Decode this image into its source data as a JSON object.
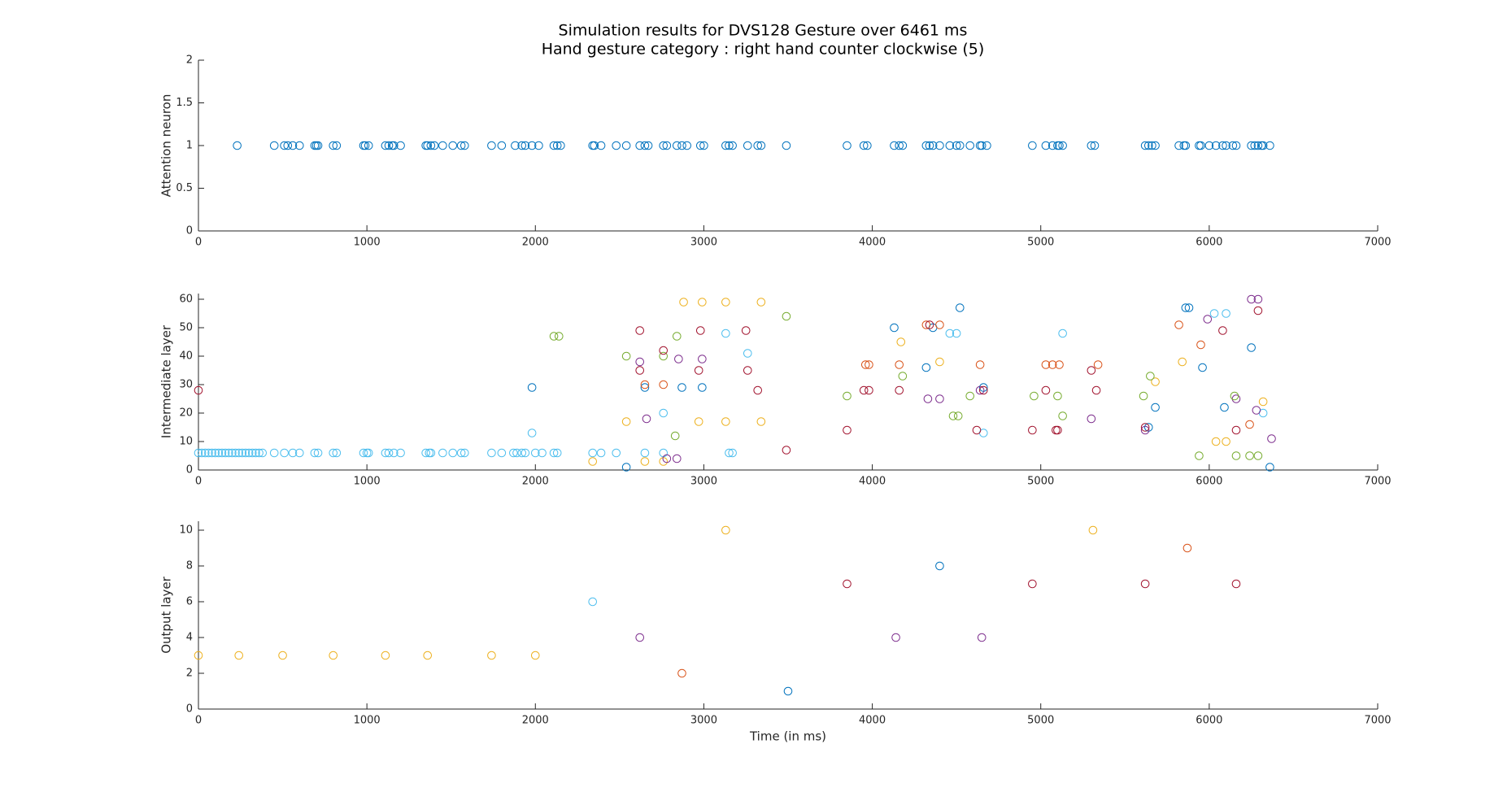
{
  "chart_data": [
    {
      "type": "scatter",
      "title": "Simulation results for DVS128 Gesture over 6461 ms",
      "subtitle": "Hand gesture category : right hand counter clockwise (5)",
      "ylabel": "Attention neuron",
      "xlim": [
        0,
        7000
      ],
      "xticks": [
        0,
        1000,
        2000,
        3000,
        4000,
        5000,
        6000,
        7000
      ],
      "ylim": [
        0,
        2
      ],
      "yticks": [
        0,
        0.5,
        1,
        1.5,
        2
      ],
      "series": [
        {
          "color": "#0072BD",
          "x": [
            230,
            450,
            510,
            530,
            560,
            600,
            690,
            700,
            710,
            800,
            820,
            980,
            990,
            1010,
            1110,
            1130,
            1150,
            1160,
            1200,
            1350,
            1360,
            1380,
            1400,
            1450,
            1510,
            1560,
            1580,
            1740,
            1800,
            1880,
            1920,
            1940,
            1980,
            2020,
            2110,
            2130,
            2150,
            2340,
            2350,
            2390,
            2480,
            2540,
            2620,
            2650,
            2670,
            2760,
            2780,
            2840,
            2870,
            2900,
            2980,
            3000,
            3130,
            3150,
            3170,
            3260,
            3320,
            3340,
            3490,
            3850,
            3950,
            3970,
            4130,
            4160,
            4180,
            4320,
            4340,
            4360,
            4400,
            4460,
            4500,
            4520,
            4580,
            4640,
            4650,
            4680,
            4950,
            5030,
            5070,
            5100,
            5110,
            5130,
            5300,
            5320,
            5620,
            5640,
            5660,
            5680,
            5820,
            5850,
            5860,
            5940,
            5950,
            6000,
            6040,
            6080,
            6100,
            6140,
            6160,
            6250,
            6270,
            6290,
            6310,
            6320,
            6360
          ],
          "values": [
            1,
            1,
            1,
            1,
            1,
            1,
            1,
            1,
            1,
            1,
            1,
            1,
            1,
            1,
            1,
            1,
            1,
            1,
            1,
            1,
            1,
            1,
            1,
            1,
            1,
            1,
            1,
            1,
            1,
            1,
            1,
            1,
            1,
            1,
            1,
            1,
            1,
            1,
            1,
            1,
            1,
            1,
            1,
            1,
            1,
            1,
            1,
            1,
            1,
            1,
            1,
            1,
            1,
            1,
            1,
            1,
            1,
            1,
            1,
            1,
            1,
            1,
            1,
            1,
            1,
            1,
            1,
            1,
            1,
            1,
            1,
            1,
            1,
            1,
            1,
            1,
            1,
            1,
            1,
            1,
            1,
            1,
            1,
            1,
            1,
            1,
            1,
            1,
            1,
            1,
            1,
            1,
            1,
            1,
            1,
            1,
            1,
            1,
            1,
            1,
            1,
            1,
            1,
            1,
            1
          ]
        }
      ]
    },
    {
      "type": "scatter",
      "ylabel": "Intermediate layer",
      "xlim": [
        0,
        7000
      ],
      "xticks": [
        0,
        1000,
        2000,
        3000,
        4000,
        5000,
        6000,
        7000
      ],
      "ylim": [
        0,
        62
      ],
      "yticks": [
        0,
        10,
        20,
        30,
        40,
        50,
        60
      ],
      "series": [
        {
          "color": "#4DBEEE",
          "x": [
            0,
            20,
            40,
            60,
            80,
            100,
            120,
            140,
            160,
            180,
            200,
            220,
            240,
            260,
            280,
            300,
            320,
            340,
            360,
            380,
            450,
            510,
            560,
            600,
            690,
            710,
            800,
            820,
            980,
            1000,
            1010,
            1110,
            1130,
            1160,
            1200,
            1350,
            1370,
            1380,
            1450,
            1510,
            1560,
            1580,
            1740,
            1800,
            1870,
            1890,
            1920,
            1940,
            2000,
            2040,
            2110,
            2130,
            2340,
            2390,
            2480,
            2650,
            2760,
            3150,
            3170,
            1980,
            2760,
            3130,
            3260,
            4460,
            4500,
            4660,
            5130,
            6030,
            6100,
            6320
          ],
          "values": [
            6,
            6,
            6,
            6,
            6,
            6,
            6,
            6,
            6,
            6,
            6,
            6,
            6,
            6,
            6,
            6,
            6,
            6,
            6,
            6,
            6,
            6,
            6,
            6,
            6,
            6,
            6,
            6,
            6,
            6,
            6,
            6,
            6,
            6,
            6,
            6,
            6,
            6,
            6,
            6,
            6,
            6,
            6,
            6,
            6,
            6,
            6,
            6,
            6,
            6,
            6,
            6,
            6,
            6,
            6,
            6,
            6,
            6,
            6,
            13,
            20,
            48,
            41,
            48,
            48,
            13,
            48,
            55,
            55,
            20
          ]
        },
        {
          "color": "#0072BD",
          "x": [
            1980,
            2540,
            2650,
            2870,
            2990,
            4130,
            4320,
            4360,
            4520,
            4660,
            5960,
            5860,
            5880,
            6090,
            6250,
            6360,
            5640,
            5680
          ],
          "values": [
            29,
            1,
            29,
            29,
            29,
            50,
            36,
            50,
            57,
            29,
            36,
            57,
            57,
            22,
            43,
            1,
            15,
            22
          ]
        },
        {
          "color": "#D95319",
          "x": [
            2650,
            2760,
            3960,
            3980,
            4160,
            4320,
            4400,
            4640,
            5030,
            5070,
            5110,
            5340,
            5820,
            5950,
            6240
          ],
          "values": [
            30,
            30,
            37,
            37,
            37,
            51,
            51,
            37,
            37,
            37,
            37,
            37,
            51,
            44,
            16
          ]
        },
        {
          "color": "#EDB120",
          "x": [
            2340,
            2540,
            2650,
            2760,
            2880,
            2970,
            2990,
            3130,
            3130,
            3340,
            3340,
            4170,
            4400,
            5680,
            5840,
            6040,
            6100,
            6320
          ],
          "values": [
            3,
            17,
            3,
            3,
            59,
            17,
            59,
            17,
            59,
            59,
            17,
            45,
            38,
            31,
            38,
            10,
            10,
            24
          ]
        },
        {
          "color": "#7E2F8E",
          "x": [
            2620,
            2660,
            2850,
            2990,
            2780,
            2840,
            4330,
            4400,
            4640,
            5300,
            5620,
            6160,
            6250,
            6290,
            6370,
            6280,
            5990
          ],
          "values": [
            38,
            18,
            39,
            39,
            4,
            4,
            25,
            25,
            28,
            18,
            14,
            25,
            60,
            60,
            11,
            21,
            53
          ]
        },
        {
          "color": "#77AC30",
          "x": [
            2110,
            2140,
            2540,
            2760,
            2840,
            2830,
            3490,
            3850,
            4180,
            4480,
            4510,
            4580,
            4960,
            5100,
            5130,
            5610,
            5650,
            5940,
            6160,
            6240,
            6290,
            6150
          ],
          "values": [
            47,
            47,
            40,
            40,
            47,
            12,
            54,
            26,
            33,
            19,
            19,
            26,
            26,
            26,
            19,
            26,
            33,
            5,
            5,
            5,
            5,
            26
          ]
        },
        {
          "color": "#A2142F",
          "x": [
            0,
            2620,
            2620,
            2760,
            2970,
            2980,
            3260,
            3250,
            3320,
            3490,
            3850,
            3950,
            3980,
            4160,
            4340,
            4620,
            4660,
            4950,
            5030,
            5090,
            5100,
            5300,
            5330,
            5620,
            6080,
            6160,
            6290
          ],
          "values": [
            28,
            49,
            35,
            42,
            35,
            49,
            35,
            49,
            28,
            7,
            14,
            28,
            28,
            28,
            51,
            14,
            28,
            14,
            28,
            14,
            14,
            35,
            28,
            15,
            49,
            14,
            56
          ]
        }
      ]
    },
    {
      "type": "scatter",
      "ylabel": "Output layer",
      "xlabel": "Time (in ms)",
      "xlim": [
        0,
        7000
      ],
      "xticks": [
        0,
        1000,
        2000,
        3000,
        4000,
        5000,
        6000,
        7000
      ],
      "ylim": [
        0,
        10.5
      ],
      "yticks": [
        0,
        2,
        4,
        6,
        8,
        10
      ],
      "series": [
        {
          "color": "#EDB120",
          "x": [
            0,
            240,
            500,
            800,
            1110,
            1360,
            1740,
            2000,
            3130,
            5310
          ],
          "values": [
            3,
            3,
            3,
            3,
            3,
            3,
            3,
            3,
            10,
            10
          ]
        },
        {
          "color": "#4DBEEE",
          "x": [
            2340
          ],
          "values": [
            6
          ]
        },
        {
          "color": "#7E2F8E",
          "x": [
            2620,
            4140,
            4650
          ],
          "values": [
            4,
            4,
            4
          ]
        },
        {
          "color": "#D95319",
          "x": [
            2870,
            5870
          ],
          "values": [
            2,
            9
          ]
        },
        {
          "color": "#0072BD",
          "x": [
            3500,
            4400
          ],
          "values": [
            1,
            8
          ]
        },
        {
          "color": "#A2142F",
          "x": [
            3850,
            4950,
            5620,
            6160
          ],
          "values": [
            7,
            7,
            7,
            7
          ]
        }
      ]
    }
  ]
}
